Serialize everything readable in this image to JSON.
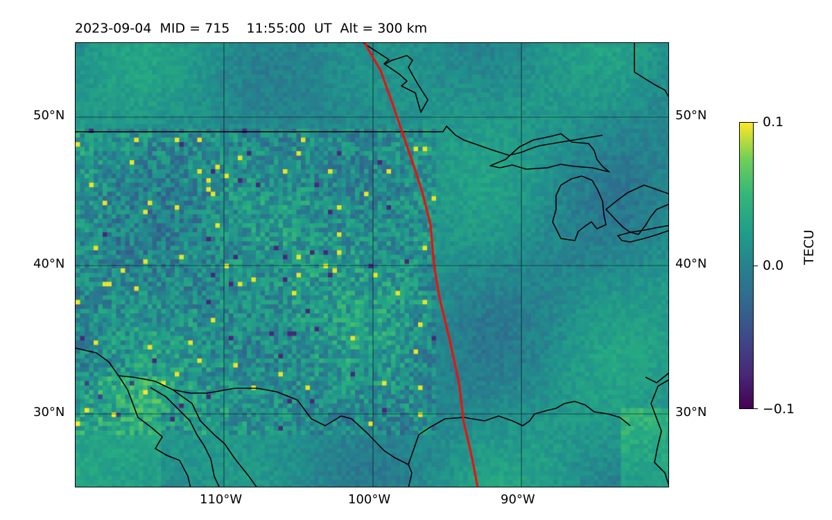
{
  "title": "2023-09-04  MID = 715    11:55:00  UT  Alt = 300 km",
  "map": {
    "lon_range": [
      -120,
      -80
    ],
    "lat_range": [
      25,
      55
    ],
    "lat_labels": [
      "30°N",
      "40°N",
      "50°N"
    ],
    "lon_labels": [
      "110°W",
      "100°W",
      "90°W"
    ],
    "terminator_color": "#e8140c",
    "coastline_color": "#000000"
  },
  "colorbar": {
    "label": "TECU",
    "ticks": [
      "0.1",
      "0.0",
      "−0.1"
    ],
    "colormap": "viridis",
    "range": [
      -0.1,
      0.1
    ]
  }
}
